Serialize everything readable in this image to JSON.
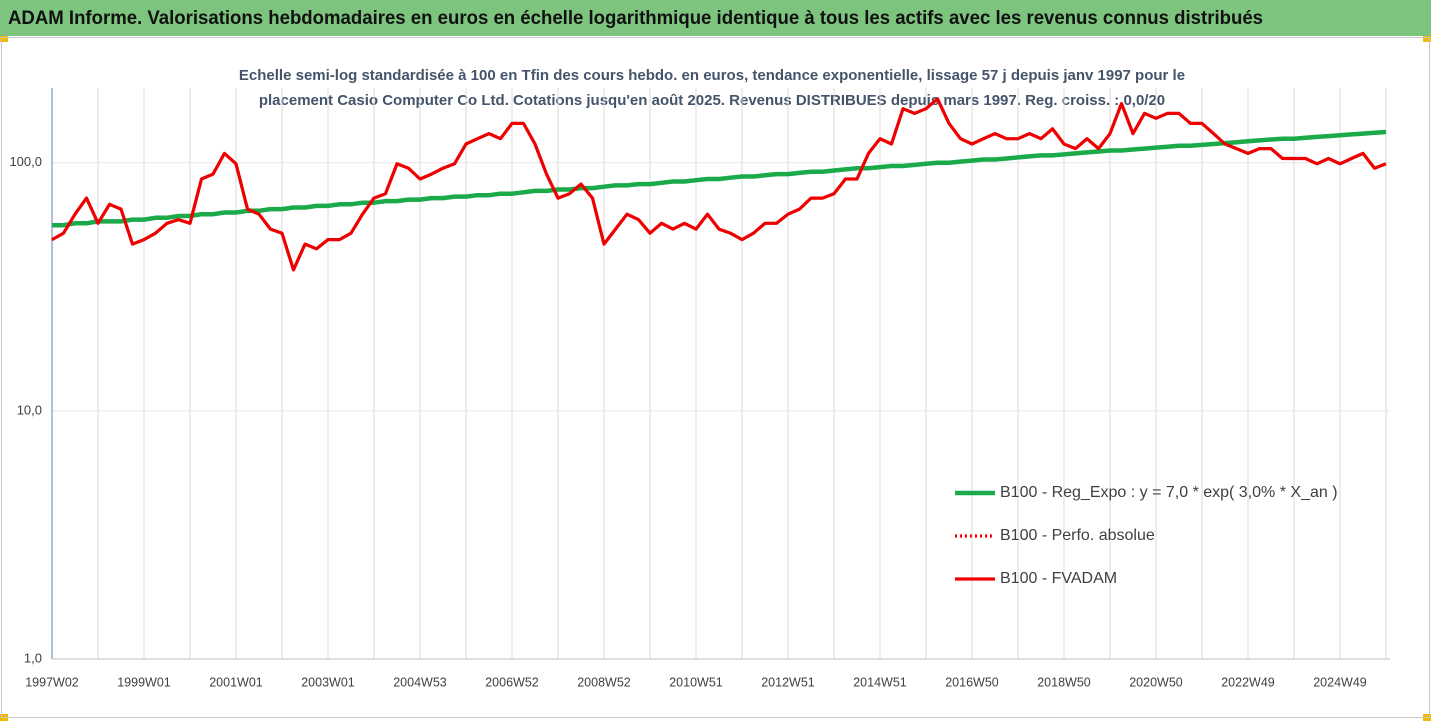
{
  "header": {
    "title": "ADAM Informe. Valorisations hebdomadaires en euros en échelle logarithmique identique à tous les actifs avec les revenus connus distribués"
  },
  "chart_data": {
    "type": "line",
    "subtitle": [
      "Echelle semi-log standardisée à 100 en Tfin des cours hebdo. en euros, tendance exponentielle, lissage 57 j depuis janv 1997 pour le",
      "placement Casio Computer Co Ltd.  Cotations jusqu'en août 2025.  Revenus DISTRIBUES depuis mars 1997. Reg. croiss. : 0,0/20"
    ],
    "log_y": true,
    "ylim": [
      1,
      200
    ],
    "yticks": [
      {
        "value": 1,
        "label": "1,0"
      },
      {
        "value": 10,
        "label": "10,0"
      },
      {
        "value": 100,
        "label": "100,0"
      }
    ],
    "categories": [
      "1997W02",
      null,
      null,
      null,
      null,
      null,
      null,
      null,
      "1999W01",
      null,
      null,
      null,
      null,
      null,
      null,
      null,
      "2001W01",
      null,
      null,
      null,
      null,
      null,
      null,
      null,
      "2003W01",
      null,
      null,
      null,
      null,
      null,
      null,
      null,
      "2004W53",
      null,
      null,
      null,
      null,
      null,
      null,
      null,
      "2006W52",
      null,
      null,
      null,
      null,
      null,
      null,
      null,
      "2008W52",
      null,
      null,
      null,
      null,
      null,
      null,
      null,
      "2010W51",
      null,
      null,
      null,
      null,
      null,
      null,
      null,
      "2012W51",
      null,
      null,
      null,
      null,
      null,
      null,
      null,
      "2014W51",
      null,
      null,
      null,
      null,
      null,
      null,
      null,
      "2016W50",
      null,
      null,
      null,
      null,
      null,
      null,
      null,
      "2018W50",
      null,
      null,
      null,
      null,
      null,
      null,
      null,
      "2020W50",
      null,
      null,
      null,
      null,
      null,
      null,
      null,
      "2022W49",
      null,
      null,
      null,
      null,
      null,
      null,
      null,
      "2024W49",
      null,
      null,
      null,
      null
    ],
    "series": [
      {
        "name": "B100 - Reg_Expo : y = 7,0 * exp( 3,0% *  X_an )",
        "color": "#1aaa4a",
        "style": "solid",
        "values": [
          56,
          56,
          57,
          57,
          58,
          58,
          58,
          59,
          59,
          60,
          60,
          61,
          61,
          62,
          62,
          63,
          63,
          64,
          64,
          65,
          65,
          66,
          66,
          67,
          67,
          68,
          68,
          69,
          69,
          70,
          70,
          71,
          71,
          72,
          72,
          73,
          73,
          74,
          74,
          75,
          75,
          76,
          77,
          77,
          78,
          78,
          79,
          79,
          80,
          81,
          81,
          82,
          82,
          83,
          84,
          84,
          85,
          86,
          86,
          87,
          88,
          88,
          89,
          90,
          90,
          91,
          92,
          92,
          93,
          94,
          95,
          95,
          96,
          97,
          97,
          98,
          99,
          100,
          100,
          101,
          102,
          103,
          103,
          104,
          105,
          106,
          107,
          107,
          108,
          109,
          110,
          111,
          112,
          112,
          113,
          114,
          115,
          116,
          117,
          117,
          118,
          119,
          120,
          121,
          122,
          123,
          124,
          125,
          125,
          126,
          127,
          128,
          129,
          130,
          131,
          132,
          133
        ]
      },
      {
        "name": "B100 - Perfo. absolue",
        "color": "#ff0000",
        "style": "dotted",
        "values": [
          49,
          52,
          62,
          72,
          57,
          68,
          65,
          47,
          49,
          52,
          57,
          59,
          57,
          86,
          90,
          109,
          99,
          65,
          62,
          54,
          52,
          37,
          47,
          45,
          49,
          49,
          52,
          62,
          72,
          75,
          99,
          95,
          86,
          90,
          95,
          99,
          119,
          125,
          131,
          125,
          144,
          144,
          119,
          90,
          72,
          75,
          82,
          72,
          47,
          54,
          62,
          59,
          52,
          57,
          54,
          57,
          54,
          62,
          54,
          52,
          49,
          52,
          57,
          57,
          62,
          65,
          72,
          72,
          75,
          86,
          86,
          109,
          125,
          119,
          165,
          158,
          165,
          181,
          144,
          125,
          119,
          125,
          131,
          125,
          125,
          131,
          125,
          137,
          119,
          114,
          125,
          114,
          131,
          173,
          131,
          158,
          151,
          158,
          158,
          144,
          144,
          131,
          119,
          114,
          109,
          114,
          114,
          104,
          104,
          104,
          99,
          104,
          99,
          104,
          109,
          95,
          99
        ]
      },
      {
        "name": "B100 - FVADAM",
        "color": "#ee0000",
        "style": "solid",
        "values": [
          49,
          52,
          62,
          72,
          57,
          68,
          65,
          47,
          49,
          52,
          57,
          59,
          57,
          86,
          90,
          109,
          99,
          65,
          62,
          54,
          52,
          37,
          47,
          45,
          49,
          49,
          52,
          62,
          72,
          75,
          99,
          95,
          86,
          90,
          95,
          99,
          119,
          125,
          131,
          125,
          144,
          144,
          119,
          90,
          72,
          75,
          82,
          72,
          47,
          54,
          62,
          59,
          52,
          57,
          54,
          57,
          54,
          62,
          54,
          52,
          49,
          52,
          57,
          57,
          62,
          65,
          72,
          72,
          75,
          86,
          86,
          109,
          125,
          119,
          165,
          158,
          165,
          181,
          144,
          125,
          119,
          125,
          131,
          125,
          125,
          131,
          125,
          137,
          119,
          114,
          125,
          114,
          131,
          173,
          131,
          158,
          151,
          158,
          158,
          144,
          144,
          131,
          119,
          114,
          109,
          114,
          114,
          104,
          104,
          104,
          99,
          104,
          99,
          104,
          109,
          95,
          99
        ]
      }
    ],
    "grid": true
  }
}
